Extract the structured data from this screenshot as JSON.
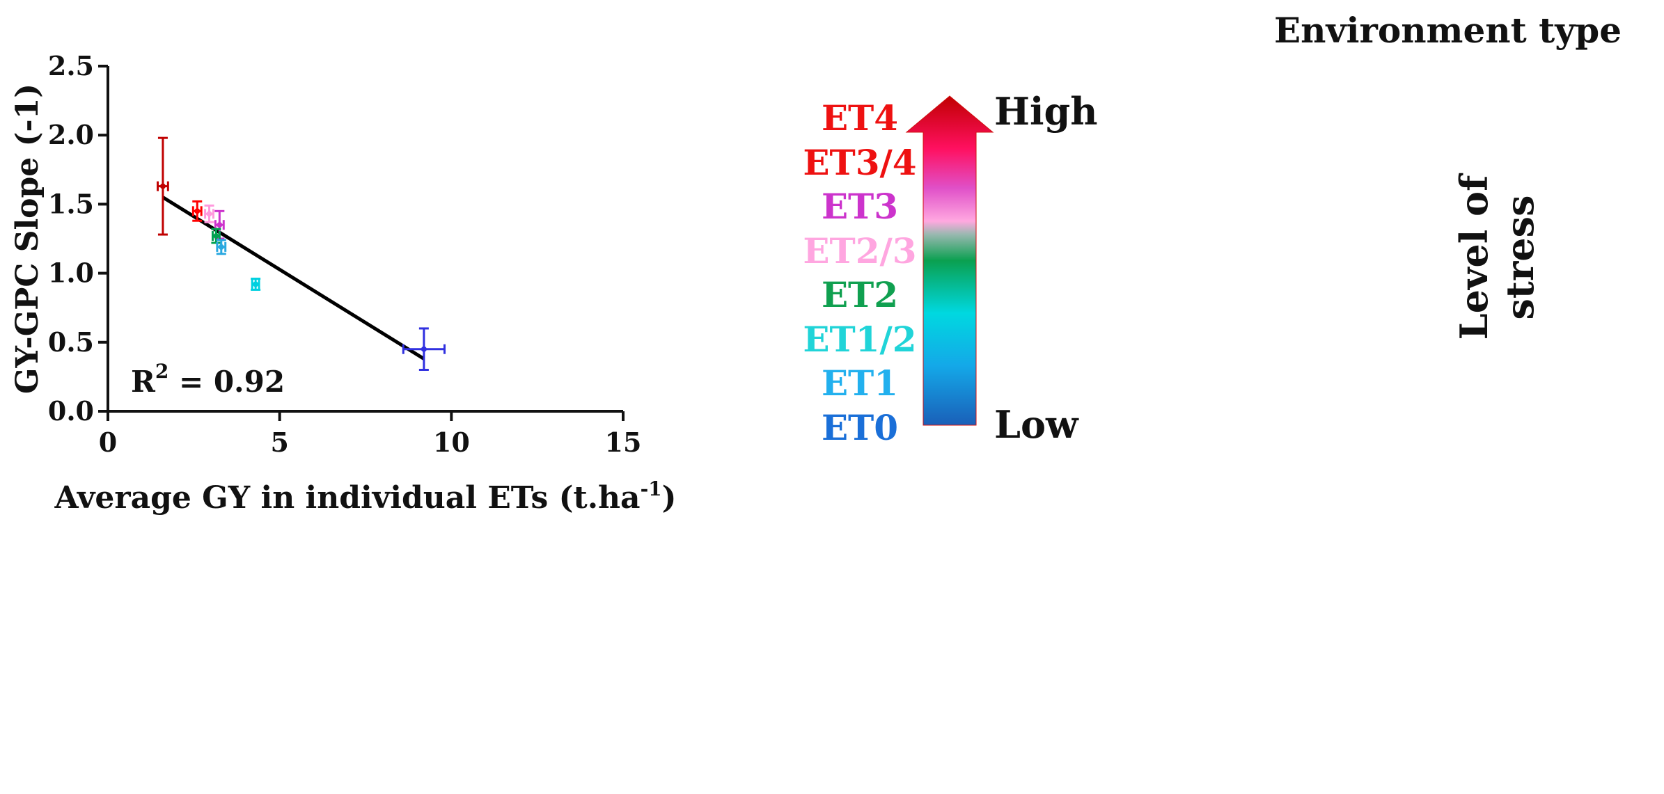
{
  "chart_data": {
    "type": "scatter",
    "ylabel": "GY-GPC Slope (-1)",
    "xlabel_main": "Average GY in individual ETs (t.ha",
    "xlabel_sup": "-1",
    "xlabel_end": ")",
    "xlim": [
      0,
      15
    ],
    "ylim": [
      0,
      2.5
    ],
    "x_ticks": [
      "0",
      "5",
      "10",
      "15"
    ],
    "y_ticks": [
      "0.0",
      "0.5",
      "1.0",
      "1.5",
      "2.0",
      "2.5"
    ],
    "annotation_main": "R",
    "annotation_sup": "2",
    "annotation_end": " = 0.92",
    "grid": false,
    "points": [
      {
        "x": 1.6,
        "y": 1.63,
        "xerr": 0.15,
        "yerr": 0.35,
        "color": "#c00000"
      },
      {
        "x": 2.6,
        "y": 1.45,
        "xerr": 0.12,
        "yerr": 0.07,
        "color": "#ff0000"
      },
      {
        "x": 2.95,
        "y": 1.43,
        "xerr": 0.12,
        "yerr": 0.06,
        "color": "#ff99dd"
      },
      {
        "x": 3.25,
        "y": 1.35,
        "xerr": 0.12,
        "yerr": 0.1,
        "color": "#cc33cc"
      },
      {
        "x": 3.15,
        "y": 1.27,
        "xerr": 0.1,
        "yerr": 0.05,
        "color": "#00a050"
      },
      {
        "x": 3.3,
        "y": 1.19,
        "xerr": 0.12,
        "yerr": 0.05,
        "color": "#29a8e0"
      },
      {
        "x": 4.3,
        "y": 0.92,
        "xerr": 0.1,
        "yerr": 0.04,
        "color": "#00d0e0"
      },
      {
        "x": 9.2,
        "y": 0.45,
        "xerr": 0.6,
        "yerr": 0.15,
        "color": "#3030e0"
      }
    ],
    "fit_line": {
      "x": [
        1.6,
        9.2
      ],
      "y": [
        1.55,
        0.38
      ],
      "color": "#000000"
    }
  },
  "legend": {
    "title": "Environment type",
    "items": [
      {
        "label": "ET4",
        "color": "#ee1111"
      },
      {
        "label": "ET3/4",
        "color": "#ee1111"
      },
      {
        "label": "ET3",
        "color": "#cc33cc"
      },
      {
        "label": "ET2/3",
        "color": "#ffa6e0"
      },
      {
        "label": "ET2",
        "color": "#10a050"
      },
      {
        "label": "ET1/2",
        "color": "#20d4d8"
      },
      {
        "label": "ET1",
        "color": "#22b0ee"
      },
      {
        "label": "ET0",
        "color": "#1a6fd8"
      }
    ],
    "high_label": "High",
    "low_label": "Low",
    "stress_line1": "Level of",
    "stress_line2": "stress"
  }
}
